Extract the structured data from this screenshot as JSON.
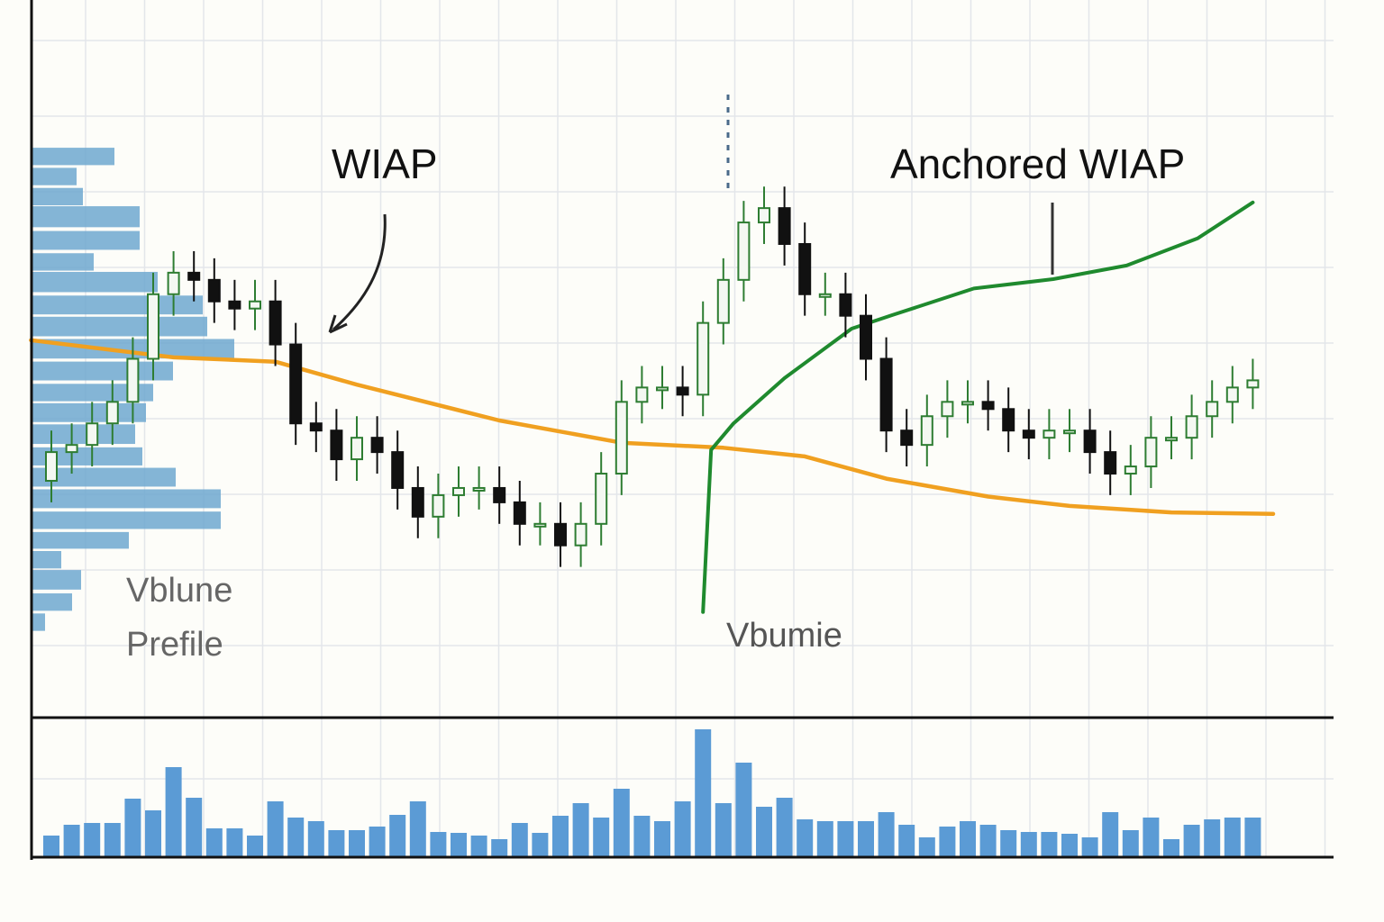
{
  "chart_data": {
    "type": "candlestick",
    "annotations": {
      "vwap_label": "WIAP",
      "anchored_label": "Anchored WIAP",
      "profile_label": [
        "Vblune",
        "Prefile"
      ],
      "volume_label": "Vbumie"
    },
    "ylim": [
      0,
      100
    ],
    "grid": true,
    "up_color": "#2e7d32",
    "down_color": "#111111",
    "open": [
      33,
      37,
      38,
      41,
      44,
      50,
      59,
      62,
      61,
      58,
      57,
      58,
      52,
      41,
      40,
      36,
      39,
      37,
      32,
      28,
      31,
      32,
      32,
      30,
      27,
      27,
      24,
      27,
      34,
      44,
      46,
      46,
      45,
      55,
      61,
      69,
      71,
      66,
      59,
      59,
      56,
      50,
      40,
      38,
      42,
      44,
      44,
      43,
      40,
      39,
      40,
      40,
      37,
      34,
      35,
      39,
      39,
      42,
      44,
      46
    ],
    "high": [
      40,
      41,
      44,
      47,
      53,
      62,
      65,
      65,
      64,
      61,
      61,
      61,
      55,
      44,
      43,
      42,
      42,
      40,
      35,
      34,
      35,
      35,
      35,
      33,
      30,
      30,
      30,
      37,
      47,
      49,
      49,
      49,
      58,
      64,
      72,
      74,
      74,
      69,
      62,
      62,
      59,
      53,
      43,
      45,
      47,
      47,
      47,
      46,
      43,
      43,
      43,
      43,
      40,
      38,
      42,
      42,
      45,
      47,
      49,
      50
    ],
    "low": [
      30,
      34,
      35,
      38,
      41,
      47,
      56,
      58,
      55,
      54,
      54,
      49,
      38,
      37,
      33,
      33,
      34,
      29,
      25,
      25,
      28,
      29,
      27,
      24,
      24,
      21,
      21,
      24,
      31,
      41,
      43,
      42,
      42,
      52,
      58,
      66,
      63,
      56,
      56,
      53,
      47,
      37,
      35,
      35,
      39,
      41,
      40,
      37,
      36,
      36,
      37,
      34,
      31,
      31,
      32,
      36,
      36,
      39,
      41,
      43
    ],
    "close": [
      37,
      38,
      41,
      44,
      50,
      59,
      62,
      61,
      58,
      57,
      58,
      52,
      41,
      40,
      36,
      39,
      37,
      32,
      28,
      31,
      32,
      32,
      30,
      27,
      27,
      24,
      27,
      34,
      44,
      46,
      46,
      45,
      55,
      61,
      69,
      71,
      66,
      59,
      59,
      56,
      50,
      40,
      38,
      42,
      44,
      44,
      43,
      40,
      39,
      40,
      40,
      37,
      34,
      35,
      39,
      39,
      42,
      44,
      46,
      47
    ],
    "vwap": {
      "color": "#f0a020",
      "x": [
        -1,
        6,
        11,
        15,
        22,
        28,
        33,
        37,
        41,
        46,
        50,
        55,
        60
      ],
      "values": [
        52.6,
        50.2,
        49.6,
        46.4,
        41.4,
        38.3,
        37.6,
        36.4,
        33.3,
        30.8,
        29.5,
        28.6,
        28.4
      ]
    },
    "anchored_vwap": {
      "color": "#1f8a2e",
      "x": [
        32,
        32.4,
        33.5,
        36,
        39.3,
        41.3,
        45.3,
        49.2,
        52.8,
        56.3,
        59
      ],
      "values": [
        14.7,
        37.3,
        41.0,
        47.3,
        54.2,
        56.1,
        59.8,
        61.1,
        63.0,
        66.8,
        71.8
      ]
    },
    "volume_profile": {
      "color": "#6fa8d0",
      "levels": [
        78.2,
        75.4,
        72.6,
        69.8,
        66.5,
        63.5,
        60.7,
        57.5,
        54.5,
        51.4,
        48.3,
        45.3,
        42.5,
        39.5,
        36.4,
        33.5,
        30.5,
        27.5,
        24.7,
        22.0,
        19.2,
        16.1,
        13.3
      ],
      "values": [
        92,
        50,
        57,
        120,
        120,
        69,
        140,
        190,
        195,
        225,
        157,
        135,
        127,
        115,
        123,
        160,
        210,
        210,
        108,
        33,
        55,
        45,
        15
      ]
    },
    "volume": {
      "color": "#5b9bd5",
      "ylim": [
        0,
        155
      ],
      "values": [
        24,
        36,
        38,
        38,
        65,
        52,
        100,
        66,
        32,
        32,
        24,
        62,
        44,
        40,
        30,
        30,
        34,
        47,
        62,
        28,
        27,
        24,
        20,
        38,
        27,
        46,
        60,
        44,
        76,
        46,
        40,
        62,
        142,
        60,
        105,
        56,
        66,
        42,
        40,
        40,
        40,
        50,
        36,
        22,
        34,
        40,
        36,
        30,
        28,
        28,
        26,
        22,
        50,
        30,
        44,
        20,
        36,
        42,
        44,
        44
      ]
    }
  }
}
